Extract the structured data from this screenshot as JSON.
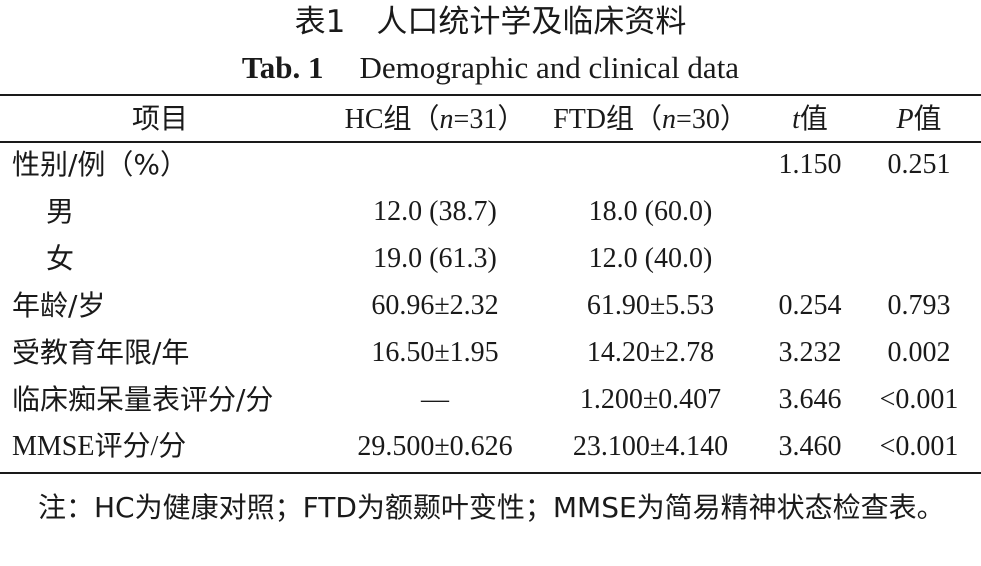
{
  "caption": {
    "zh": "表1　人口统计学及临床资料",
    "en_label": "Tab. 1",
    "en_text": "Demographic and clinical data"
  },
  "table": {
    "headers": [
      "项目",
      "HC组（n=31）",
      "FTD组（n=30）",
      "t值",
      "P值"
    ],
    "rows": [
      {
        "item": "性别/例（%）",
        "hc": "",
        "ftd": "",
        "t": "1.150",
        "p": "0.251",
        "indent": false
      },
      {
        "item": "男",
        "hc": "12.0 (38.7)",
        "ftd": "18.0 (60.0)",
        "t": "",
        "p": "",
        "indent": true
      },
      {
        "item": "女",
        "hc": "19.0 (61.3)",
        "ftd": "12.0 (40.0)",
        "t": "",
        "p": "",
        "indent": true
      },
      {
        "item": "年龄/岁",
        "hc": "60.96±2.32",
        "ftd": "61.90±5.53",
        "t": "0.254",
        "p": "0.793",
        "indent": false
      },
      {
        "item": "受教育年限/年",
        "hc": "16.50±1.95",
        "ftd": "14.20±2.78",
        "t": "3.232",
        "p": "0.002",
        "indent": false
      },
      {
        "item": "临床痴呆量表评分/分",
        "hc": "—",
        "ftd": "1.200±0.407",
        "t": "3.646",
        "p": "<0.001",
        "indent": false
      },
      {
        "item": "MMSE评分/分",
        "hc": "29.500±0.626",
        "ftd": "23.100±4.140",
        "t": "3.460",
        "p": "<0.001",
        "indent": false
      }
    ]
  },
  "footnote": "注：HC为健康对照；FTD为额颞叶变性；MMSE为简易精神状态检查表。"
}
